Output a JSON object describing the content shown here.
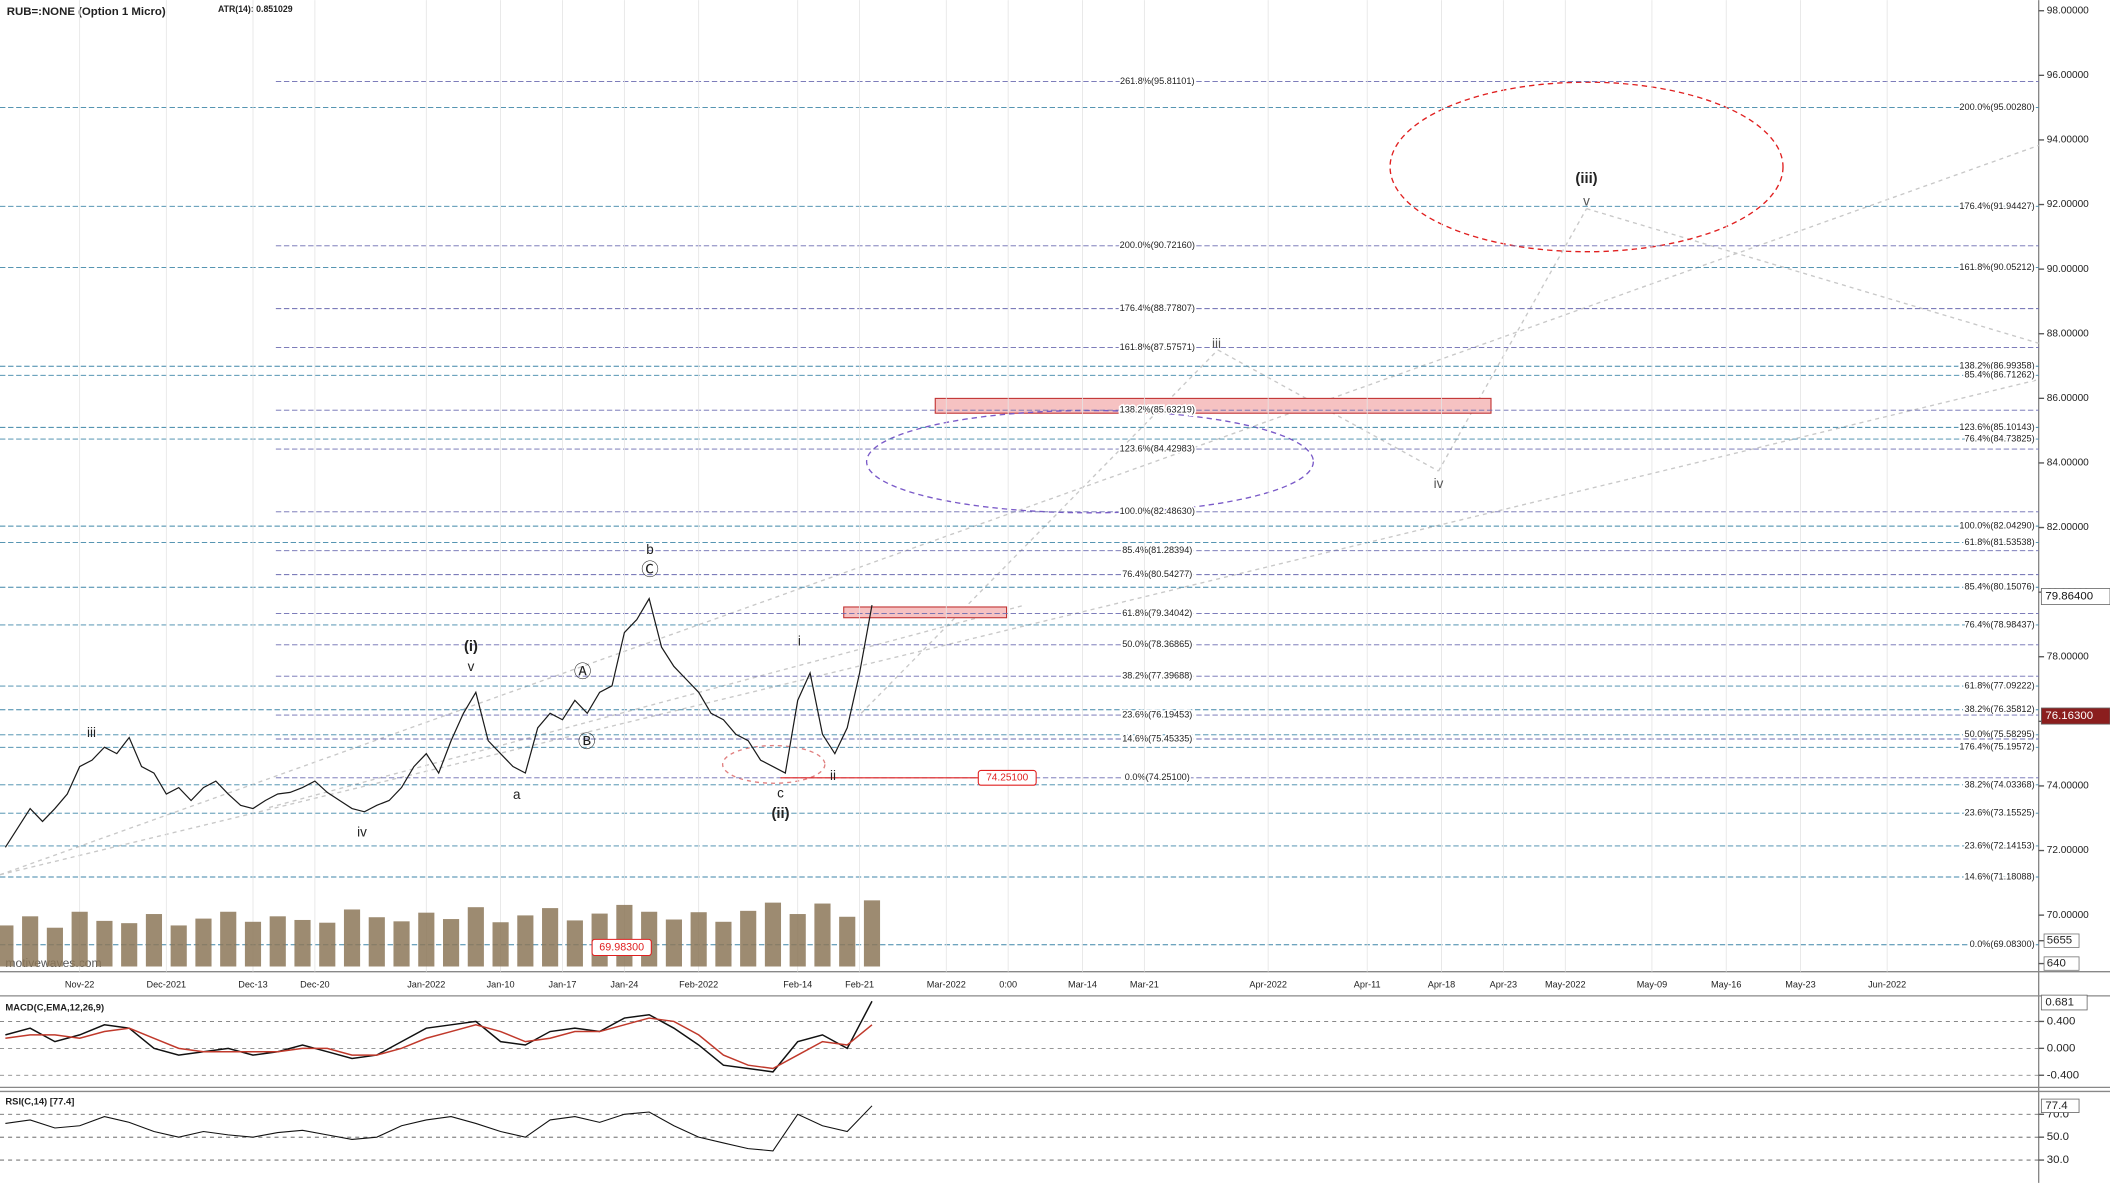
{
  "chart_data": [
    {
      "type": "line",
      "title": "RUB=:NONE (Option 1 Micro)",
      "subtitle": "ATR(14): 0.851029",
      "color": "#1a1a1a",
      "categories": [
        null,
        null,
        null,
        null,
        null,
        null,
        "Nov-22",
        null,
        null,
        null,
        null,
        null,
        null,
        "Dec-2021",
        null,
        null,
        null,
        null,
        null,
        null,
        "Dec-13",
        null,
        null,
        null,
        null,
        "Dec-20",
        null,
        null,
        null,
        null,
        null,
        null,
        null,
        null,
        "Jan-2022",
        null,
        null,
        null,
        null,
        null,
        "Jan-10",
        null,
        null,
        null,
        null,
        "Jan-17",
        null,
        null,
        null,
        null,
        "Jan-24",
        null,
        null,
        null,
        null,
        null,
        "Feb-2022",
        null,
        null,
        null,
        null,
        null,
        null,
        null,
        "Feb-14",
        null,
        null,
        null,
        null,
        "Feb-21",
        null,
        null,
        null,
        null,
        null,
        null,
        "Mar-2022",
        null,
        null,
        null,
        null,
        "0:00",
        null,
        null,
        null,
        null,
        null,
        "Mar-14",
        null,
        null,
        null,
        null,
        "Mar-21",
        null,
        null,
        null,
        null,
        null,
        null,
        null,
        null,
        null,
        "Apr-2022",
        null,
        null,
        null,
        null,
        null,
        null,
        null,
        "Apr-11",
        null,
        null,
        null,
        null,
        null,
        "Apr-18",
        null,
        null,
        null,
        null,
        "Apr-23",
        null,
        null,
        null,
        null,
        "May-2022",
        null,
        null,
        null,
        null,
        null,
        null,
        "May-09",
        null,
        null,
        null,
        null,
        null,
        "May-16",
        null,
        null,
        null,
        null,
        null,
        "May-23",
        null,
        null,
        null,
        null,
        null,
        null,
        "Jun-2022",
        null,
        null,
        null,
        null,
        null,
        null,
        null
      ],
      "values": [
        72.1,
        72.7,
        73.3,
        72.9,
        73.3,
        73.75,
        74.6,
        74.8,
        75.2,
        75.0,
        75.5,
        74.6,
        74.4,
        73.75,
        73.95,
        73.55,
        73.95,
        74.15,
        73.75,
        73.4,
        73.3,
        73.55,
        73.75,
        73.8,
        73.95,
        74.15,
        73.8,
        73.55,
        73.3,
        73.2,
        73.4,
        73.55,
        73.95,
        74.6,
        75.0,
        74.4,
        75.4,
        76.25,
        76.9,
        75.4,
        75.0,
        74.6,
        74.4,
        75.8,
        76.25,
        76.05,
        76.65,
        76.25,
        76.9,
        77.1,
        78.75,
        79.15,
        79.8,
        78.3,
        77.7,
        77.3,
        76.9,
        76.25,
        76.05,
        75.6,
        75.4,
        74.8,
        74.6,
        74.4,
        76.65,
        77.5,
        75.6,
        75.0,
        75.8,
        77.5,
        79.6,
        null,
        null,
        null,
        null,
        null,
        null,
        null,
        null,
        null,
        null,
        null,
        null,
        null,
        null,
        null,
        null,
        null,
        null,
        null,
        null,
        null,
        null,
        null,
        null,
        null,
        null,
        null,
        null,
        null,
        null,
        null,
        null,
        null,
        null,
        null,
        null,
        null,
        null,
        null,
        null,
        null,
        null,
        null,
        null,
        null,
        null,
        null,
        null,
        null,
        null,
        null,
        null,
        null,
        null,
        null,
        null,
        null,
        null,
        null,
        null,
        null,
        null,
        null,
        null,
        null,
        null,
        null,
        null,
        null,
        null,
        null,
        null,
        null,
        null,
        null,
        null,
        null,
        null,
        null,
        null,
        null,
        null,
        null,
        null,
        null,
        null,
        null,
        null,
        null
      ],
      "ylim": [
        68.25,
        98.33
      ],
      "yticks": [
        {
          "value": 70,
          "label": "70.00000"
        },
        {
          "value": 72,
          "label": "72.00000"
        },
        {
          "value": 74,
          "label": "74.00000"
        },
        {
          "value": 76,
          "label": "76.00000"
        },
        {
          "value": 78,
          "label": "78.00000"
        },
        {
          "value": 80,
          "label": "80.00000"
        },
        {
          "value": 82,
          "label": "82.00000"
        },
        {
          "value": 84,
          "label": "84.00000"
        },
        {
          "value": 86,
          "label": "86.00000"
        },
        {
          "value": 88,
          "label": "88.00000"
        },
        {
          "value": 90,
          "label": "90.00000"
        },
        {
          "value": 92,
          "label": "92.00000"
        },
        {
          "value": 94,
          "label": "94.00000"
        },
        {
          "value": 96,
          "label": "96.00000"
        },
        {
          "value": 98,
          "label": "98.00000"
        }
      ],
      "center_level_color": "#6b6bb0",
      "right_level_color": "#3f86a8",
      "fib_levels_center": [
        {
          "value": 95.81101,
          "label": "261.8%(95.81101)"
        },
        {
          "value": 90.7216,
          "label": "200.0%(90.72160)"
        },
        {
          "value": 88.77807,
          "label": "176.4%(88.77807)"
        },
        {
          "value": 87.57571,
          "label": "161.8%(87.57571)"
        },
        {
          "value": 85.63219,
          "label": "138.2%(85.63219)"
        },
        {
          "value": 84.42983,
          "label": "123.6%(84.42983)"
        },
        {
          "value": 82.4863,
          "label": "100.0%(82.48630)"
        },
        {
          "value": 81.28394,
          "label": "85.4%(81.28394)"
        },
        {
          "value": 80.54277,
          "label": "76.4%(80.54277)"
        },
        {
          "value": 79.34042,
          "label": "61.8%(79.34042)"
        },
        {
          "value": 78.36865,
          "label": "50.0%(78.36865)"
        },
        {
          "value": 77.39688,
          "label": "38.2%(77.39688)"
        },
        {
          "value": 76.19453,
          "label": "23.6%(76.19453)"
        },
        {
          "value": 75.45335,
          "label": "14.6%(75.45335)"
        },
        {
          "value": 74.251,
          "label": "0.0%(74.25100)"
        }
      ],
      "fib_levels_right": [
        {
          "value": 95.0028,
          "label": "200.0%(95.00280)"
        },
        {
          "value": 91.94427,
          "label": "176.4%(91.94427)"
        },
        {
          "value": 90.05212,
          "label": "161.8%(90.05212)"
        },
        {
          "value": 86.99358,
          "label": "138.2%(86.99358)"
        },
        {
          "value": 86.71262,
          "label": "85.4%(86.71262)"
        },
        {
          "value": 85.10143,
          "label": "123.6%(85.10143)"
        },
        {
          "value": 84.73825,
          "label": "76.4%(84.73825)"
        },
        {
          "value": 82.0429,
          "label": "100.0%(82.04290)"
        },
        {
          "value": 81.53538,
          "label": "61.8%(81.53538)"
        },
        {
          "value": 80.15076,
          "label": "85.4%(80.15076)"
        },
        {
          "value": 78.98437,
          "label": "76.4%(78.98437)"
        },
        {
          "value": 77.09222,
          "label": "61.8%(77.09222)"
        },
        {
          "value": 76.35812,
          "label": "38.2%(76.35812)"
        },
        {
          "value": 75.58295,
          "label": "50.0%(75.58295)"
        },
        {
          "value": 75.19572,
          "label": "176.4%(75.19572)"
        },
        {
          "value": 74.03368,
          "label": "38.2%(74.03368)"
        },
        {
          "value": 73.15525,
          "label": "23.6%(73.15525)"
        },
        {
          "value": 72.14153,
          "label": "23.6%(72.14153)"
        },
        {
          "value": 71.18088,
          "label": "14.6%(71.18088)"
        },
        {
          "value": 69.083,
          "label": "0.0%(69.08300)"
        }
      ],
      "price_tags": [
        {
          "value": 79.864,
          "label": "79.86400",
          "color": "#ffffff",
          "text_color": "#111111"
        },
        {
          "value": 76.163,
          "label": "76.16300",
          "color": "#8b1e1e",
          "text_color": "#ffffff"
        }
      ],
      "red_tag": {
        "value": 74.251,
        "label": "74.25100",
        "color": "#e02020"
      },
      "wave_labels": [
        "iii",
        "iv",
        "v",
        "(i)",
        "a",
        "Ⓐ",
        "Ⓑ",
        "b",
        "Ⓒ",
        "i",
        "ii",
        "c",
        "(ii)",
        "iii",
        "iv",
        "(iii)",
        "v"
      ]
    },
    {
      "type": "bar",
      "color": "#8c7758",
      "watermark": "motivewaves.com",
      "tag_label": "69.98300",
      "values": [
        9000,
        11000,
        8500,
        12000,
        10000,
        9500,
        11500,
        9000,
        10500,
        12000,
        9800,
        11000,
        10200,
        9600,
        12500,
        10800,
        9900,
        11800,
        10400,
        13000,
        9700,
        11200,
        12800,
        10100,
        11600,
        13500,
        12000,
        10300,
        11900,
        9800,
        12200,
        14000,
        11500,
        13800,
        10900,
        14500
      ],
      "ylim": [
        -1130,
        15685
      ],
      "yticks": [
        5655,
        640
      ]
    },
    {
      "type": "line",
      "title": "MACD(C,EMA,12,26,9)",
      "last_value": 0.681,
      "series": [
        {
          "color": "#111111",
          "values": [
            0.2,
            0.3,
            0.1,
            0.2,
            0.35,
            0.3,
            0.0,
            -0.1,
            -0.05,
            0.0,
            -0.1,
            -0.05,
            0.05,
            -0.05,
            -0.15,
            -0.1,
            0.1,
            0.3,
            0.35,
            0.4,
            0.1,
            0.05,
            0.25,
            0.3,
            0.25,
            0.45,
            0.5,
            0.3,
            0.05,
            -0.25,
            -0.3,
            -0.35,
            0.1,
            0.2,
            0.0,
            0.7
          ]
        },
        {
          "color": "#c0392b",
          "values": [
            0.15,
            0.2,
            0.2,
            0.15,
            0.25,
            0.3,
            0.15,
            0.0,
            -0.05,
            -0.05,
            -0.05,
            -0.05,
            0.0,
            0.0,
            -0.1,
            -0.1,
            0.0,
            0.15,
            0.25,
            0.35,
            0.25,
            0.1,
            0.15,
            0.25,
            0.25,
            0.35,
            0.45,
            0.4,
            0.2,
            -0.1,
            -0.25,
            -0.3,
            -0.1,
            0.1,
            0.05,
            0.35
          ]
        }
      ],
      "ylim": [
        -0.56,
        0.74
      ],
      "yticks": [
        {
          "value": 0.4,
          "label": "0.400"
        },
        {
          "value": 0,
          "label": "0.000"
        },
        {
          "value": -0.4,
          "label": "-0.400"
        }
      ]
    },
    {
      "type": "line",
      "title": "RSI(C,14) [77.4]",
      "last_value": 77.4,
      "color": "#111111",
      "values": [
        62,
        65,
        58,
        60,
        68,
        63,
        55,
        50,
        55,
        52,
        50,
        54,
        56,
        52,
        48,
        50,
        60,
        65,
        68,
        62,
        55,
        50,
        65,
        68,
        63,
        70,
        72,
        60,
        50,
        45,
        40,
        38,
        70,
        60,
        55,
        77.4
      ],
      "ylim": [
        12.4,
        88.8
      ],
      "yticks": [
        {
          "value": 70,
          "label": "70.0"
        },
        {
          "value": 50,
          "label": "50.0"
        },
        {
          "value": 30,
          "label": "30.0"
        }
      ]
    }
  ]
}
